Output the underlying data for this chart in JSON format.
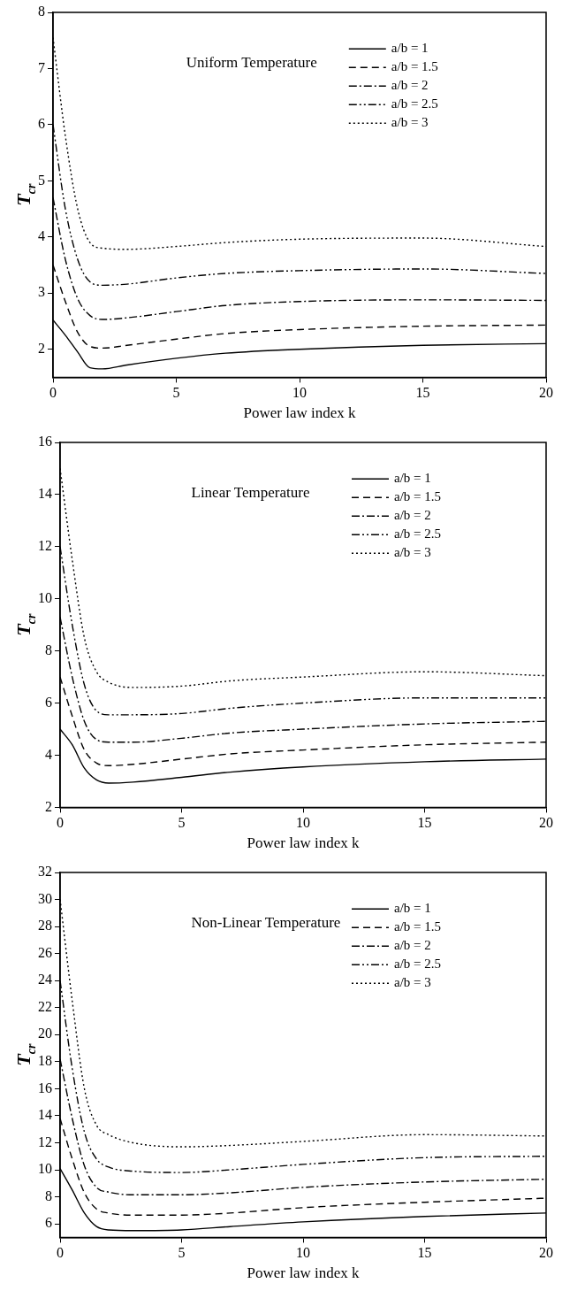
{
  "chart_data": [
    {
      "type": "line",
      "title": "Uniform Temperature",
      "xlabel": "Power law index k",
      "ylabel": "T$_{cr}$",
      "xlim": [
        0,
        20
      ],
      "xticks": [
        0,
        5,
        10,
        15,
        20
      ],
      "ylim": [
        1.5,
        8
      ],
      "yticks": [
        2,
        3,
        4,
        5,
        6,
        7,
        8
      ],
      "grid": false,
      "legend": "top right",
      "marker": "none",
      "x": [
        0,
        0.5,
        1,
        1.5,
        2,
        3,
        5,
        7,
        10,
        15,
        20
      ],
      "series": [
        {
          "name": "a/b = 1",
          "color": "#000000",
          "line_style": "solid",
          "values": [
            2.52,
            2.25,
            1.95,
            1.67,
            1.65,
            1.72,
            1.84,
            1.93,
            2.0,
            2.07,
            2.1
          ]
        },
        {
          "name": "a/b = 1.5",
          "color": "#000000",
          "line_style": "dashed",
          "values": [
            3.5,
            2.85,
            2.3,
            2.05,
            2.02,
            2.07,
            2.18,
            2.28,
            2.35,
            2.41,
            2.43
          ]
        },
        {
          "name": "a/b = 2",
          "color": "#000000",
          "line_style": "dashdot",
          "values": [
            4.7,
            3.6,
            2.9,
            2.6,
            2.53,
            2.56,
            2.67,
            2.78,
            2.85,
            2.88,
            2.87
          ]
        },
        {
          "name": "a/b = 2.5",
          "color": "#000000",
          "line_style": "dashdotdot",
          "values": [
            6.0,
            4.5,
            3.6,
            3.2,
            3.14,
            3.16,
            3.27,
            3.35,
            3.4,
            3.43,
            3.35
          ]
        },
        {
          "name": "a/b = 3",
          "color": "#000000",
          "line_style": "dotted",
          "values": [
            7.55,
            5.8,
            4.5,
            3.9,
            3.8,
            3.78,
            3.83,
            3.9,
            3.96,
            3.98,
            3.83
          ]
        }
      ]
    },
    {
      "type": "line",
      "title": "Linear Temperature",
      "xlabel": "Power law index k",
      "ylabel": "T$_{cr}$",
      "xlim": [
        0,
        20
      ],
      "xticks": [
        0,
        5,
        10,
        15,
        20
      ],
      "ylim": [
        2,
        16
      ],
      "yticks": [
        2,
        4,
        6,
        8,
        10,
        12,
        14,
        16
      ],
      "grid": false,
      "legend": "top right",
      "marker": "none",
      "x": [
        0,
        0.5,
        1,
        1.5,
        2,
        3,
        5,
        7,
        10,
        15,
        20
      ],
      "series": [
        {
          "name": "a/b = 1",
          "color": "#000000",
          "line_style": "solid",
          "values": [
            5.0,
            4.4,
            3.5,
            3.05,
            2.93,
            2.97,
            3.15,
            3.35,
            3.55,
            3.75,
            3.85
          ]
        },
        {
          "name": "a/b = 1.5",
          "color": "#000000",
          "line_style": "dashed",
          "values": [
            7.0,
            5.5,
            4.2,
            3.7,
            3.6,
            3.65,
            3.85,
            4.05,
            4.2,
            4.4,
            4.5
          ]
        },
        {
          "name": "a/b = 2",
          "color": "#000000",
          "line_style": "dashdot",
          "values": [
            9.3,
            7.0,
            5.3,
            4.6,
            4.5,
            4.5,
            4.65,
            4.85,
            5.0,
            5.2,
            5.3
          ]
        },
        {
          "name": "a/b = 2.5",
          "color": "#000000",
          "line_style": "dashdotdot",
          "values": [
            12.0,
            9.0,
            6.7,
            5.7,
            5.55,
            5.55,
            5.6,
            5.8,
            6.0,
            6.2,
            6.2
          ]
        },
        {
          "name": "a/b = 3",
          "color": "#000000",
          "line_style": "dotted",
          "values": [
            15.0,
            11.5,
            8.5,
            7.2,
            6.8,
            6.6,
            6.65,
            6.85,
            7.0,
            7.2,
            7.05
          ]
        }
      ]
    },
    {
      "type": "line",
      "title": "Non-Linear Temperature",
      "xlabel": "Power law index k",
      "ylabel": "T$_{cr}$",
      "xlim": [
        0,
        20
      ],
      "xticks": [
        0,
        5,
        10,
        15,
        20
      ],
      "ylim": [
        5,
        32
      ],
      "yticks": [
        6,
        8,
        10,
        12,
        14,
        16,
        18,
        20,
        22,
        24,
        26,
        28,
        30,
        32
      ],
      "grid": false,
      "legend": "top right",
      "marker": "none",
      "x": [
        0,
        0.5,
        1,
        1.5,
        2,
        3,
        5,
        7,
        10,
        15,
        20
      ],
      "series": [
        {
          "name": "a/b = 1",
          "color": "#000000",
          "line_style": "solid",
          "values": [
            10.1,
            8.5,
            6.8,
            5.8,
            5.55,
            5.5,
            5.55,
            5.8,
            6.15,
            6.55,
            6.8
          ]
        },
        {
          "name": "a/b = 1.5",
          "color": "#000000",
          "line_style": "dashed",
          "values": [
            13.8,
            10.8,
            8.3,
            7.1,
            6.8,
            6.65,
            6.65,
            6.8,
            7.2,
            7.6,
            7.9
          ]
        },
        {
          "name": "a/b = 2",
          "color": "#000000",
          "line_style": "dashdot",
          "values": [
            18.2,
            13.8,
            10.3,
            8.7,
            8.35,
            8.15,
            8.15,
            8.3,
            8.7,
            9.1,
            9.3
          ]
        },
        {
          "name": "a/b = 2.5",
          "color": "#000000",
          "line_style": "dashdotdot",
          "values": [
            24.0,
            17.5,
            12.8,
            10.8,
            10.2,
            9.9,
            9.8,
            10.0,
            10.4,
            10.9,
            11.0
          ]
        },
        {
          "name": "a/b = 3",
          "color": "#000000",
          "line_style": "dotted",
          "values": [
            30.0,
            22.5,
            16.0,
            13.3,
            12.6,
            12.0,
            11.7,
            11.8,
            12.1,
            12.6,
            12.5
          ]
        }
      ]
    }
  ]
}
